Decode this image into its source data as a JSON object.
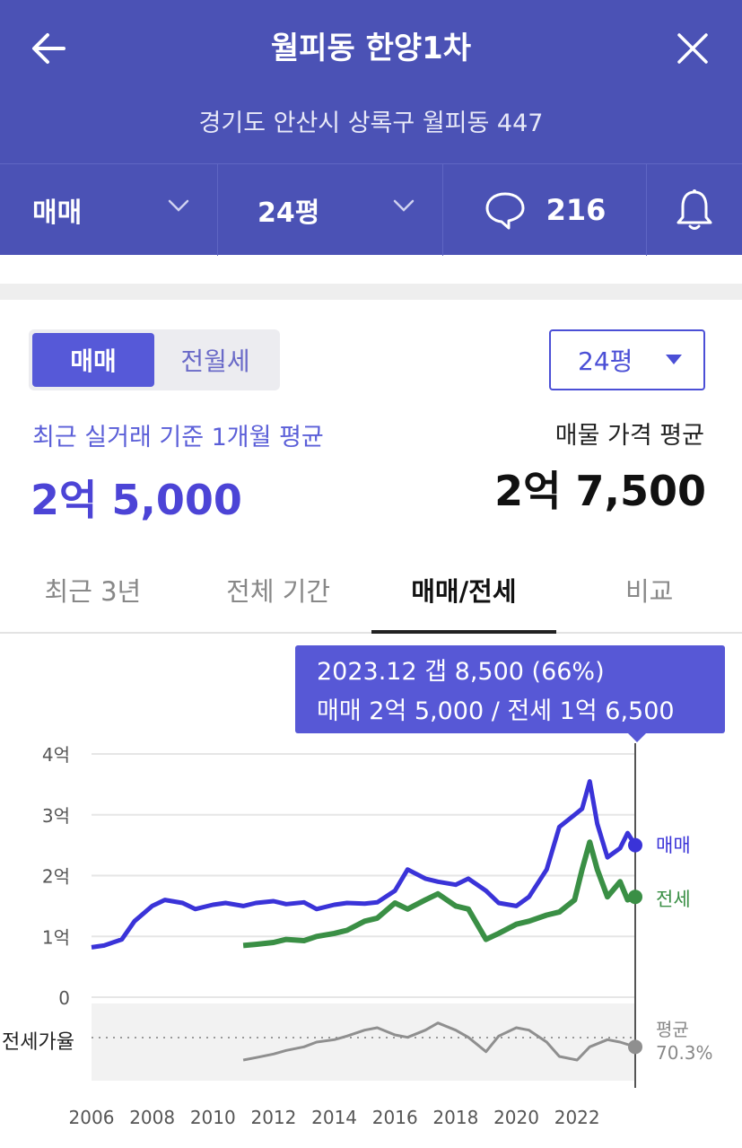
{
  "header": {
    "title": "월피동 한양1차",
    "address": "경기도 안산시 상록구 월피동 447",
    "trade_type": "매매",
    "size": "24평",
    "comment_count": "216",
    "icons": [
      "back-arrow-icon",
      "close-icon",
      "chevron-down-icon",
      "comment-bubble-icon",
      "bell-icon"
    ]
  },
  "filters": {
    "segment": [
      "매매",
      "전월세"
    ],
    "segment_active": 0,
    "size_select": "24평"
  },
  "summary": {
    "recent_label": "최근 실거래 기준 1개월 평균",
    "recent_value": "2억 5,000",
    "listing_label": "매물 가격 평균",
    "listing_value": "2억 7,500"
  },
  "tabs": [
    "최근 3년",
    "전체 기간",
    "매매/전세",
    "비교"
  ],
  "active_tab": 2,
  "tooltip": {
    "line1": "2023.12  갭 8,500 (66%)",
    "line2": "매매 2억 5,000 / 전세 1억 6,500"
  },
  "colors": {
    "header": "#4b52b5",
    "accent": "#5659d8",
    "sale_line": "#3a33d8",
    "jeonse_line": "#3a8f45",
    "ratio_line": "#8a8a8a"
  },
  "chart_data": {
    "type": "line",
    "y_tick_labels": [
      "4억",
      "3억",
      "2억",
      "1억",
      "0"
    ],
    "ylim": [
      0,
      40000
    ],
    "x_tick_labels": [
      "2006",
      "2008",
      "2010",
      "2012",
      "2014",
      "2016",
      "2018",
      "2020",
      "2022"
    ],
    "xlim": [
      "2006-01",
      "2023-12"
    ],
    "grid": true,
    "series": [
      {
        "name": "매매",
        "x": [
          "2006-01",
          "2006-06",
          "2007-01",
          "2007-06",
          "2008-01",
          "2008-06",
          "2009-01",
          "2009-06",
          "2010-01",
          "2010-06",
          "2011-01",
          "2011-06",
          "2012-01",
          "2012-06",
          "2013-01",
          "2013-06",
          "2014-01",
          "2014-06",
          "2015-01",
          "2015-06",
          "2016-01",
          "2016-06",
          "2017-01",
          "2017-06",
          "2018-01",
          "2018-06",
          "2019-01",
          "2019-06",
          "2020-01",
          "2020-06",
          "2021-01",
          "2021-06",
          "2021-12",
          "2022-03",
          "2022-06",
          "2022-09",
          "2023-01",
          "2023-06",
          "2023-09",
          "2023-12"
        ],
        "values": [
          8200,
          8500,
          9500,
          12500,
          15000,
          16000,
          15500,
          14500,
          15200,
          15500,
          15000,
          15500,
          15800,
          15300,
          15600,
          14500,
          15200,
          15500,
          15400,
          15600,
          17500,
          21000,
          19500,
          19000,
          18500,
          19500,
          17500,
          15500,
          15000,
          16500,
          21000,
          28000,
          30000,
          31000,
          35500,
          28500,
          23000,
          24500,
          27000,
          25000
        ]
      },
      {
        "name": "전세",
        "x": [
          "2011-01",
          "2011-06",
          "2012-01",
          "2012-06",
          "2013-01",
          "2013-06",
          "2014-01",
          "2014-06",
          "2015-01",
          "2015-06",
          "2016-01",
          "2016-06",
          "2017-01",
          "2017-06",
          "2018-01",
          "2018-06",
          "2019-01",
          "2019-06",
          "2020-01",
          "2020-06",
          "2021-01",
          "2021-06",
          "2021-12",
          "2022-03",
          "2022-06",
          "2022-09",
          "2023-01",
          "2023-06",
          "2023-09",
          "2023-12"
        ],
        "values": [
          8500,
          8700,
          9000,
          9500,
          9300,
          10000,
          10500,
          11000,
          12500,
          13000,
          15500,
          14500,
          16000,
          17000,
          15000,
          14500,
          9500,
          10500,
          12000,
          12500,
          13500,
          14000,
          16000,
          21000,
          25500,
          21000,
          16500,
          19000,
          16000,
          16500
        ]
      }
    ],
    "ratio": {
      "label": "전세가율",
      "avg_label": "평균",
      "avg_value": "70.3%",
      "x": [
        "2011-01",
        "2011-06",
        "2012-01",
        "2012-06",
        "2013-01",
        "2013-06",
        "2014-01",
        "2014-06",
        "2015-01",
        "2015-06",
        "2016-01",
        "2016-06",
        "2017-01",
        "2017-06",
        "2018-01",
        "2018-06",
        "2019-01",
        "2019-06",
        "2020-01",
        "2020-06",
        "2021-01",
        "2021-06",
        "2022-01",
        "2022-06",
        "2023-01",
        "2023-06",
        "2023-12"
      ],
      "values": [
        55,
        57,
        60,
        63,
        66,
        70,
        72,
        75,
        80,
        82,
        76,
        74,
        80,
        86,
        80,
        74,
        62,
        75,
        82,
        80,
        70,
        58,
        55,
        66,
        72,
        70,
        66
      ]
    },
    "end_labels": [
      "매매",
      "전세"
    ]
  }
}
